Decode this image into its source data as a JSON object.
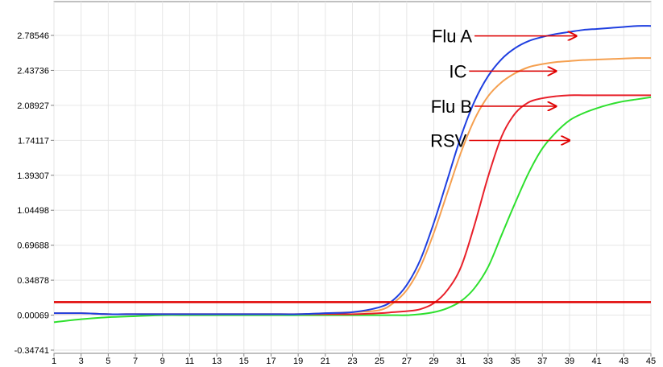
{
  "chart_data": {
    "type": "line",
    "title": "",
    "xlabel": "",
    "ylabel": "",
    "xlim": [
      1,
      45
    ],
    "ylim": [
      -0.34741,
      3.0
    ],
    "x_ticks": [
      "1",
      "3",
      "5",
      "7",
      "9",
      "11",
      "13",
      "15",
      "17",
      "19",
      "21",
      "23",
      "25",
      "27",
      "29",
      "31",
      "33",
      "35",
      "37",
      "39",
      "41",
      "43",
      "45"
    ],
    "y_ticks": [
      "2.78546",
      "2.43736",
      "2.08927",
      "1.74117",
      "1.39307",
      "1.04498",
      "0.69688",
      "0.34878",
      "0.00069",
      "-0.34741"
    ],
    "threshold": {
      "value": 0.13,
      "color": "#e00000"
    },
    "grid": true,
    "x": [
      1,
      3,
      5,
      7,
      9,
      11,
      13,
      15,
      17,
      19,
      21,
      23,
      25,
      26,
      27,
      28,
      29,
      30,
      31,
      32,
      33,
      34,
      35,
      36,
      37,
      38,
      39,
      40,
      41,
      42,
      43,
      44,
      45
    ],
    "series": [
      {
        "name": "Flu A",
        "color": "#1f3fe0",
        "values": [
          0.02,
          0.02,
          0.01,
          0.01,
          0.01,
          0.01,
          0.01,
          0.01,
          0.01,
          0.01,
          0.02,
          0.03,
          0.08,
          0.15,
          0.3,
          0.55,
          0.92,
          1.35,
          1.78,
          2.13,
          2.38,
          2.55,
          2.66,
          2.73,
          2.77,
          2.8,
          2.82,
          2.84,
          2.85,
          2.86,
          2.87,
          2.88,
          2.88
        ]
      },
      {
        "name": "IC",
        "color": "#f5a050",
        "values": [
          0.02,
          0.02,
          0.01,
          0.01,
          0.01,
          0.01,
          0.01,
          0.01,
          0.01,
          0.01,
          0.02,
          0.03,
          0.05,
          0.12,
          0.25,
          0.48,
          0.82,
          1.22,
          1.62,
          1.95,
          2.18,
          2.32,
          2.41,
          2.47,
          2.5,
          2.52,
          2.53,
          2.54,
          2.545,
          2.55,
          2.555,
          2.56,
          2.56
        ]
      },
      {
        "name": "Flu B",
        "color": "#e8202a",
        "values": [
          0.02,
          0.02,
          0.01,
          0.01,
          0.01,
          0.01,
          0.01,
          0.01,
          0.01,
          0.01,
          0.01,
          0.01,
          0.02,
          0.03,
          0.04,
          0.06,
          0.12,
          0.25,
          0.48,
          0.9,
          1.38,
          1.78,
          2.01,
          2.12,
          2.16,
          2.18,
          2.19,
          2.19,
          2.19,
          2.19,
          2.19,
          2.19,
          2.19
        ]
      },
      {
        "name": "RSV",
        "color": "#2ee02e",
        "values": [
          -0.07,
          -0.04,
          -0.02,
          -0.01,
          0.0,
          0.0,
          0.0,
          0.0,
          0.0,
          0.0,
          0.0,
          0.0,
          0.0,
          0.0,
          0.0,
          0.01,
          0.03,
          0.07,
          0.14,
          0.27,
          0.48,
          0.8,
          1.12,
          1.42,
          1.66,
          1.82,
          1.94,
          2.01,
          2.06,
          2.1,
          2.13,
          2.15,
          2.17
        ]
      }
    ],
    "annotations": [
      {
        "text": "Flu A",
        "arrow_from": [
          32.0,
          2.78
        ],
        "arrow_to": [
          39.5,
          2.78
        ]
      },
      {
        "text": "IC",
        "arrow_from": [
          31.6,
          2.43
        ],
        "arrow_to": [
          38.0,
          2.43
        ]
      },
      {
        "text": "Flu B",
        "arrow_from": [
          32.0,
          2.08
        ],
        "arrow_to": [
          38.0,
          2.08
        ]
      },
      {
        "text": "RSV",
        "arrow_from": [
          31.6,
          1.74
        ],
        "arrow_to": [
          39.0,
          1.74
        ]
      }
    ]
  }
}
